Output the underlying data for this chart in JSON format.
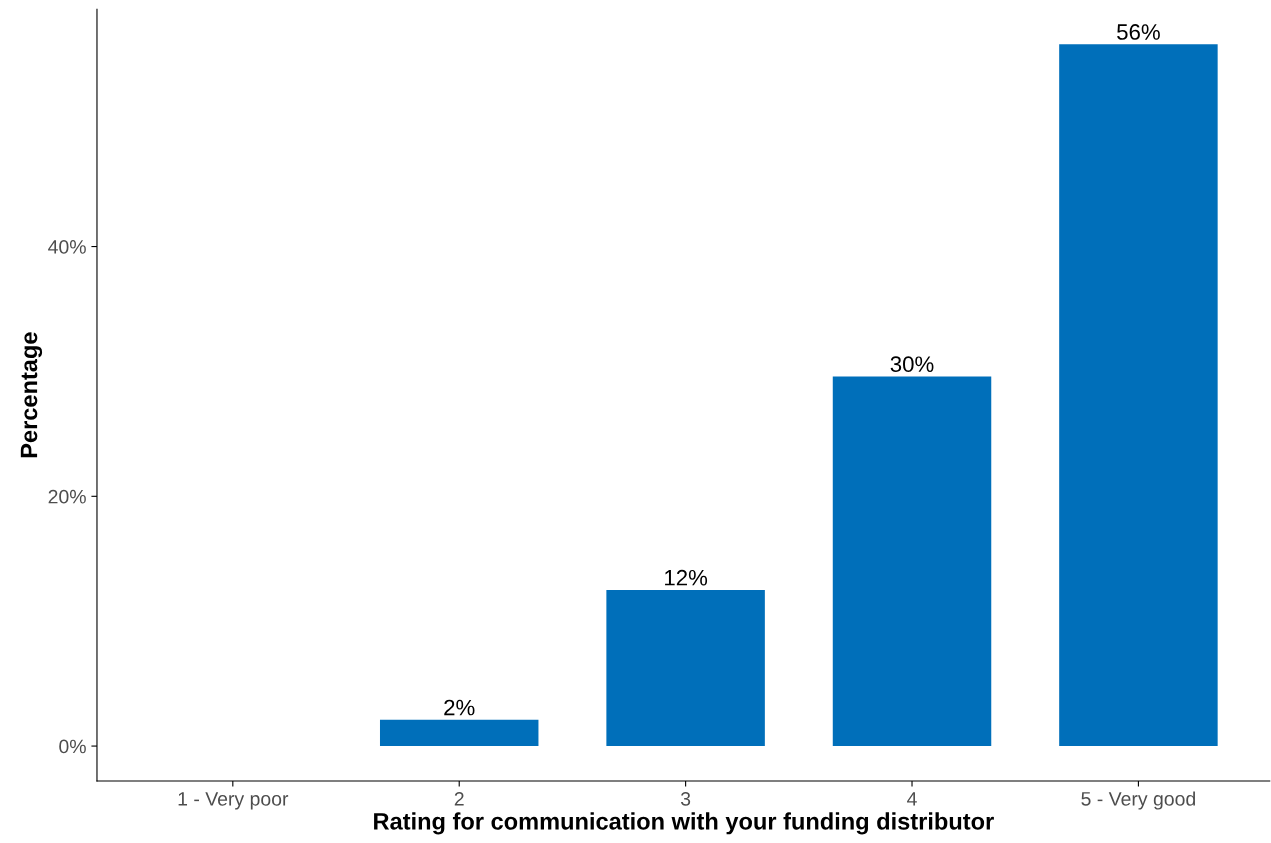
{
  "chart_data": {
    "type": "bar",
    "xlabel": "Rating for communication with your funding distributor",
    "ylabel": "Percentage",
    "categories": [
      "1 - Very poor",
      "2",
      "3",
      "4",
      "5 - Very good"
    ],
    "values": [
      0,
      2.1,
      12.5,
      29.6,
      56.2
    ],
    "value_labels": [
      null,
      "2%",
      "12%",
      "30%",
      "56%"
    ],
    "color": "#006fba",
    "ylim": [
      -2.8,
      59
    ],
    "yticks": [
      {
        "value": 0,
        "label": "0%"
      },
      {
        "value": 20,
        "label": "20%"
      },
      {
        "value": 40,
        "label": "40%"
      }
    ],
    "grid": false
  }
}
